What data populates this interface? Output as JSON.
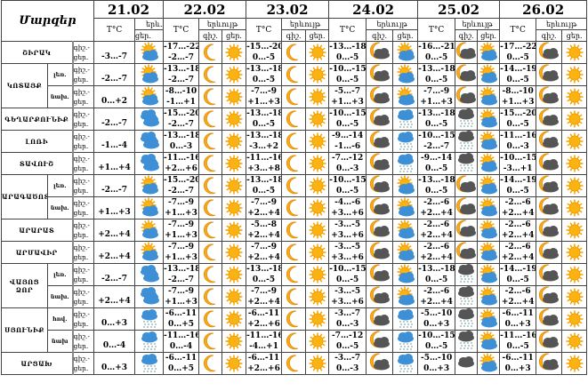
{
  "header": {
    "title": "Մարզեր",
    "first_date": "21.02",
    "first_icon_label": "երև.",
    "first_icon_sub": "ցեր.",
    "tc": "T°C",
    "phenomenon": "երևույթ",
    "night": "գիշ.",
    "day": "ցեր.",
    "dates": [
      "22.02",
      "23.02",
      "24.02",
      "25.02",
      "26.02"
    ]
  },
  "row_label": {
    "night": "գիշ.-",
    "day": "ցեր."
  },
  "colors": {
    "sun": "#f5a000",
    "cloud_blue": "#3d8fd6",
    "cloud_dark": "#555555"
  },
  "groups": [
    {
      "name": "ՇԻՐԱԿ",
      "rows": [
        {
          "sub": "",
          "t21": "-3…-7",
          "i21": "sun-cloud",
          "days": [
            [
              "-17…-22",
              "-2…-7",
              "moon",
              "sun"
            ],
            [
              "-15…-20",
              "0…-5",
              "moon",
              "sun"
            ],
            [
              "-13…-18",
              "0…-5",
              "moon-cloud",
              "sun-cloud"
            ],
            [
              "-16…-21",
              "0…-5",
              "moon-cloud",
              "sun-cloud"
            ],
            [
              "-17…-22",
              "0…-5",
              "moon-cloud",
              "sun"
            ]
          ]
        }
      ]
    },
    {
      "name": "ԿՈՏԱՅՔ",
      "rows": [
        {
          "sub": "լեռ.",
          "t21": "-2…-7",
          "i21": "sun-cloud",
          "days": [
            [
              "-13…-18",
              "-2…-7",
              "moon",
              "sun"
            ],
            [
              "-13…-18",
              "0…-5",
              "moon",
              "sun"
            ],
            [
              "-10…-15",
              "0…-5",
              "moon-cloud",
              "sun-cloud"
            ],
            [
              "-13…-18",
              "0…-5",
              "moon-cloud",
              "sun-cloud"
            ],
            [
              "-14…-19",
              "0…-5",
              "moon-cloud",
              "sun"
            ]
          ]
        },
        {
          "sub": "նախ.",
          "t21": "0…+2",
          "i21": "sun-cloud",
          "days": [
            [
              "-8…-10",
              "-1…+1",
              "moon",
              "sun"
            ],
            [
              "-7…-9",
              "+1…+3",
              "moon",
              "sun"
            ],
            [
              "-5…-7",
              "+1…+3",
              "moon-cloud",
              "sun-cloud"
            ],
            [
              "-7…-9",
              "+1…+3",
              "moon-cloud",
              "sun-cloud"
            ],
            [
              "-8…-10",
              "+1…+3",
              "moon-cloud",
              "sun"
            ]
          ]
        }
      ]
    },
    {
      "name": "ԳԵՂԱՐՔՈՒՆԻՔ",
      "rows": [
        {
          "sub": "",
          "t21": "-2…-7",
          "i21": "cloud",
          "days": [
            [
              "-15…-20",
              "-2…-7",
              "moon",
              "sun"
            ],
            [
              "-13…-18",
              "0…-5",
              "moon",
              "sun"
            ],
            [
              "-10…-15",
              "0…-5",
              "moon-cloud",
              "snow-cloud"
            ],
            [
              "-13…-18",
              "0…-5",
              "dark-snow-cloud",
              "sun-cloud"
            ],
            [
              "-15…-20",
              "0…-5",
              "moon-cloud",
              "sun"
            ]
          ]
        }
      ]
    },
    {
      "name": "ԼՈՌԻ",
      "rows": [
        {
          "sub": "",
          "t21": "-1…-4",
          "i21": "cloud",
          "days": [
            [
              "-13…-18",
              "0…-3",
              "moon",
              "sun"
            ],
            [
              "-13…-18",
              "-3…+2",
              "moon",
              "sun"
            ],
            [
              "-9…-14",
              "-1…-6",
              "moon-cloud",
              "snow-cloud"
            ],
            [
              "-10…-15",
              "-2…-7",
              "dark-snow-cloud",
              "sun-cloud"
            ],
            [
              "-11…-16",
              "0…-3",
              "moon-cloud",
              "sun"
            ]
          ]
        }
      ]
    },
    {
      "name": "ՏԱՎՈՒՇ",
      "rows": [
        {
          "sub": "",
          "t21": "+1…+4",
          "i21": "cloud",
          "days": [
            [
              "-11…-16",
              "+2…+6",
              "moon",
              "sun"
            ],
            [
              "-11…-16",
              "+3…+8",
              "moon",
              "sun"
            ],
            [
              "-7…-12",
              "0…-3",
              "moon-cloud",
              "snow-cloud"
            ],
            [
              "-9…-14",
              "0…-5",
              "dark-snow-cloud",
              "sun-cloud"
            ],
            [
              "-10…-15",
              "-3…+1",
              "moon-cloud",
              "sun"
            ]
          ]
        }
      ]
    },
    {
      "name": "ԱՐԱԳԱԾՈՏՆ",
      "rows": [
        {
          "sub": "լեռ.",
          "t21": "-2…-7",
          "i21": "sun-cloud",
          "days": [
            [
              "-15…-20",
              "-2…-7",
              "moon",
              "sun"
            ],
            [
              "-13…-18",
              "0…-5",
              "moon",
              "sun"
            ],
            [
              "-10…-15",
              "0…-5",
              "moon-cloud",
              "sun-cloud"
            ],
            [
              "-13…-18",
              "0…-5",
              "moon-cloud",
              "sun-cloud"
            ],
            [
              "-14…-19",
              "0…-5",
              "moon-cloud",
              "sun"
            ]
          ]
        },
        {
          "sub": "նախ.",
          "t21": "+1…+3",
          "i21": "sun-cloud",
          "days": [
            [
              "-7…-9",
              "+1…+3",
              "moon",
              "sun"
            ],
            [
              "-7…-9",
              "+2…+4",
              "moon",
              "sun"
            ],
            [
              "-4…-6",
              "+3…+6",
              "moon-cloud",
              "sun-cloud"
            ],
            [
              "-2…-6",
              "+2…+4",
              "moon-cloud",
              "sun-cloud"
            ],
            [
              "-2…-6",
              "+2…+4",
              "moon-cloud",
              "sun"
            ]
          ]
        }
      ]
    },
    {
      "name": "ԱՐԱՐԱՏ",
      "rows": [
        {
          "sub": "",
          "t21": "+2…+4",
          "i21": "sun-cloud",
          "days": [
            [
              "-7…-9",
              "+1…+3",
              "moon",
              "sun"
            ],
            [
              "-5…-8",
              "+2…+4",
              "moon",
              "sun"
            ],
            [
              "-3…-5",
              "+3…+6",
              "moon-cloud",
              "sun-cloud"
            ],
            [
              "-2…-6",
              "+2…+4",
              "moon-cloud",
              "sun-cloud"
            ],
            [
              "-2…-6",
              "+2…+4",
              "moon-cloud",
              "sun"
            ]
          ]
        }
      ]
    },
    {
      "name": "ԱՐՄԱՎԻՐ",
      "rows": [
        {
          "sub": "",
          "t21": "+2…+4",
          "i21": "sun-cloud",
          "days": [
            [
              "-7…-9",
              "+1…+3",
              "moon",
              "sun"
            ],
            [
              "-7…-9",
              "+2…+4",
              "moon",
              "sun"
            ],
            [
              "-3…-5",
              "+3…+6",
              "moon-cloud",
              "sun-cloud"
            ],
            [
              "-2…-6",
              "+2…+4",
              "moon-cloud",
              "sun-cloud"
            ],
            [
              "-2…-6",
              "+2…+4",
              "moon-cloud",
              "sun"
            ]
          ]
        }
      ]
    },
    {
      "name": "ՎԱՅՈՑ ՁՈՐ",
      "rows": [
        {
          "sub": "լեռ.",
          "t21": "-2…-7",
          "i21": "cloud",
          "days": [
            [
              "-13…-18",
              "-2…-7",
              "moon",
              "sun"
            ],
            [
              "-13…-18",
              "0…-5",
              "moon",
              "sun"
            ],
            [
              "-10…-15",
              "0…-5",
              "moon-cloud",
              "sun-cloud"
            ],
            [
              "-13…-18",
              "0…-5",
              "dark-snow-cloud",
              "sun-cloud"
            ],
            [
              "-14…-19",
              "0…-5",
              "moon-cloud",
              "sun"
            ]
          ]
        },
        {
          "sub": "նախ.",
          "t21": "+2…+4",
          "i21": "cloud",
          "days": [
            [
              "-7…-9",
              "+1…+3",
              "moon",
              "sun"
            ],
            [
              "-7…-9",
              "+2…+4",
              "moon",
              "sun"
            ],
            [
              "-3…-5",
              "+3…+6",
              "moon-cloud",
              "sun-cloud"
            ],
            [
              "-2…-6",
              "+2…+4",
              "dark-snow-cloud",
              "sun-cloud"
            ],
            [
              "-2…-6",
              "+2…+4",
              "moon-cloud",
              "sun"
            ]
          ]
        }
      ]
    },
    {
      "name": "ՍՅՈՒՆԻՔ",
      "rows": [
        {
          "sub": "հով.",
          "t21": "0…+3",
          "i21": "snow-cloud",
          "days": [
            [
              "-6…-11",
              "0…+5",
              "moon",
              "sun"
            ],
            [
              "-6…-11",
              "+2…+6",
              "moon",
              "sun"
            ],
            [
              "-3…-7",
              "0…-3",
              "moon-cloud",
              "snow-cloud"
            ],
            [
              "-5…-10",
              "0…+3",
              "dark-snow-cloud",
              "sun-cloud"
            ],
            [
              "-6…-11",
              "0…+3",
              "moon-cloud",
              "sun"
            ]
          ]
        },
        {
          "sub": "նախ",
          "t21": "0…-4",
          "i21": "snow-cloud",
          "days": [
            [
              "-11…-16",
              "0…-4",
              "moon",
              "sun"
            ],
            [
              "-11…-16",
              "-4…+1",
              "moon",
              "sun"
            ],
            [
              "-7…-12",
              "0…-5",
              "moon-cloud",
              "snow-cloud"
            ],
            [
              "-10…-15",
              "0…-5",
              "dark-snow-cloud",
              "sun-cloud"
            ],
            [
              "-11…-16",
              "0…-5",
              "moon-cloud",
              "sun"
            ]
          ]
        }
      ]
    },
    {
      "name": "ԱՐՑԱԽ",
      "rows": [
        {
          "sub": "",
          "t21": "0…+3",
          "i21": "snow-cloud",
          "days": [
            [
              "-6…-11",
              "0…+5",
              "moon",
              "sun"
            ],
            [
              "-6…-11",
              "+2…+6",
              "moon",
              "sun"
            ],
            [
              "-3…-7",
              "0…-3",
              "moon-cloud",
              "snow-cloud"
            ],
            [
              "-5…-10",
              "0…+3",
              "dark-cloud",
              "sun-cloud"
            ],
            [
              "-6…-11",
              "0…+3",
              "moon-cloud",
              "sun"
            ]
          ]
        }
      ]
    }
  ]
}
